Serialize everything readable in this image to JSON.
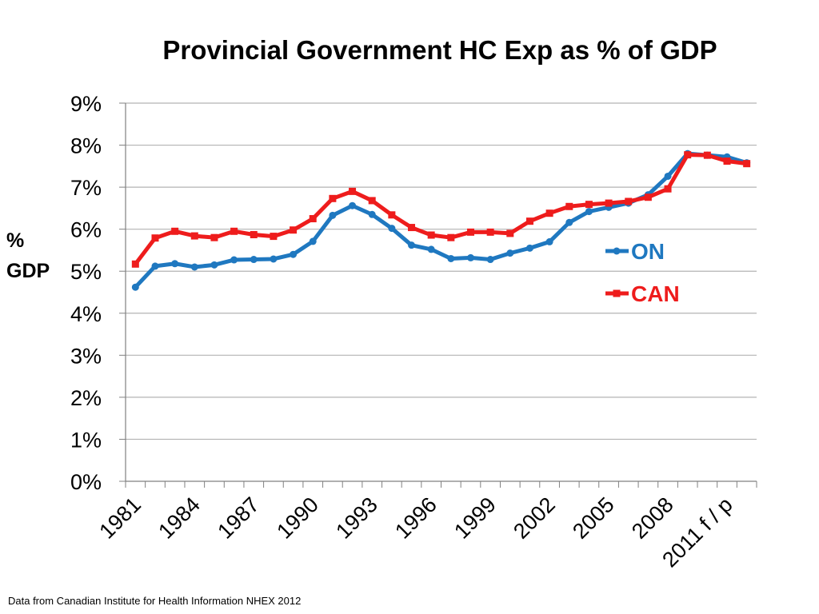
{
  "colors": {
    "ON": "#1f78c0",
    "CAN": "#ee1c1c",
    "grid": "#b3b3b3",
    "axis": "#808080"
  },
  "chart_data": {
    "type": "line",
    "title": "Provincial Government HC Exp as % of GDP",
    "ylabel_line1": "%",
    "ylabel_line2": "GDP",
    "xlabel": "",
    "ylim": [
      0,
      9
    ],
    "y_ticks": [
      "0%",
      "1%",
      "2%",
      "3%",
      "4%",
      "5%",
      "6%",
      "7%",
      "8%",
      "9%"
    ],
    "x": [
      1981,
      1982,
      1983,
      1984,
      1985,
      1986,
      1987,
      1988,
      1989,
      1990,
      1991,
      1992,
      1993,
      1994,
      1995,
      1996,
      1997,
      1998,
      1999,
      2000,
      2001,
      2002,
      2003,
      2004,
      2005,
      2006,
      2007,
      2008,
      2009,
      2010,
      2011,
      2012
    ],
    "x_tick_labels": [
      {
        "index": 0,
        "label": "1981"
      },
      {
        "index": 3,
        "label": "1984"
      },
      {
        "index": 6,
        "label": "1987"
      },
      {
        "index": 9,
        "label": "1990"
      },
      {
        "index": 12,
        "label": "1993"
      },
      {
        "index": 15,
        "label": "1996"
      },
      {
        "index": 18,
        "label": "1999"
      },
      {
        "index": 21,
        "label": "2002"
      },
      {
        "index": 24,
        "label": "2005"
      },
      {
        "index": 27,
        "label": "2008"
      },
      {
        "index": 30,
        "label": "2011 f / p"
      }
    ],
    "legend_position": "right",
    "grid": true,
    "series": [
      {
        "name": "ON",
        "marker": "circle",
        "values": [
          4.62,
          5.12,
          5.18,
          5.1,
          5.15,
          5.27,
          5.28,
          5.29,
          5.4,
          5.71,
          6.33,
          6.56,
          6.35,
          6.02,
          5.62,
          5.52,
          5.3,
          5.32,
          5.28,
          5.43,
          5.55,
          5.7,
          6.16,
          6.42,
          6.52,
          6.62,
          6.82,
          7.26,
          7.8,
          7.76,
          7.72,
          7.58
        ]
      },
      {
        "name": "CAN",
        "marker": "square",
        "values": [
          5.17,
          5.79,
          5.95,
          5.84,
          5.8,
          5.95,
          5.87,
          5.83,
          5.98,
          6.25,
          6.73,
          6.9,
          6.68,
          6.34,
          6.04,
          5.86,
          5.8,
          5.93,
          5.93,
          5.9,
          6.19,
          6.38,
          6.54,
          6.59,
          6.62,
          6.66,
          6.76,
          6.96,
          7.77,
          7.76,
          7.62,
          7.56
        ]
      }
    ]
  },
  "footnote": "Data from Canadian Institute for Health Information NHEX 2012"
}
